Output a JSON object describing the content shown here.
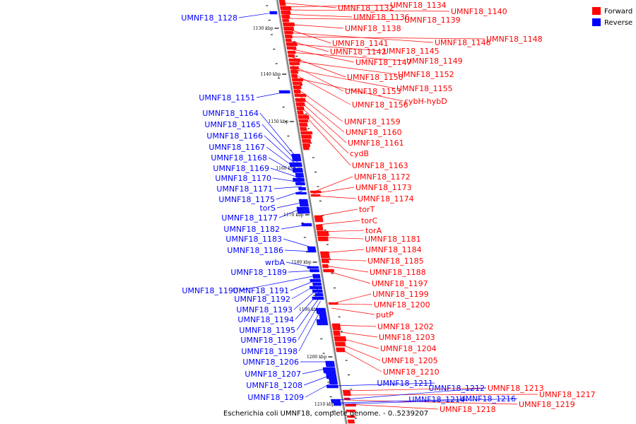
{
  "caption": "Escherichia coli UMNF18, complete genome. - 0..5239207",
  "colors": {
    "forward": "#ff0000",
    "reverse": "#0000ff",
    "axis": "#7f7f7f"
  },
  "legend": [
    {
      "label": "Forward",
      "strand": "forward"
    },
    {
      "label": "Reverse",
      "strand": "reverse"
    }
  ],
  "ticks": [
    "1130 kbp",
    "1140 kbp",
    "1150 kbp",
    "1160 kbp",
    "1170 kbp",
    "1180 kbp",
    "1190 kbp",
    "1200 kbp",
    "1210 kbp"
  ],
  "forward_labels": [
    "UMNF18_1132",
    "UMNF18_1134",
    "UMNF18_1140",
    "UMNF18_1136",
    "UMNF18_1139",
    "UMNF18_1138",
    "UMNF18_1141",
    "UMNF18_1146",
    "UMNF18_1148",
    "UMNF18_1142",
    "UMNF18_1145",
    "UMNF18_1147",
    "UMNF18_1149",
    "UMNF18_1150",
    "UMNF18_1152",
    "UMNF18_1153",
    "UMNF18_1155",
    "UMNF18_1156",
    "cybH-hybD",
    "UMNF18_1159",
    "UMNF18_1160",
    "UMNF18_1161",
    "cydB",
    "UMNF18_1163",
    "UMNF18_1172",
    "UMNF18_1173",
    "UMNF18_1174",
    "torT",
    "torC",
    "torA",
    "UMNF18_1181",
    "UMNF18_1184",
    "UMNF18_1185",
    "UMNF18_1188",
    "UMNF18_1197",
    "UMNF18_1199",
    "UMNF18_1200",
    "putP",
    "UMNF18_1202",
    "UMNF18_1203",
    "UMNF18_1204",
    "UMNF18_1205",
    "UMNF18_1210",
    "UMNF18_1213",
    "UMNF18_1217",
    "UMNF18_1219",
    "UMNF18_1218"
  ],
  "reverse_labels": [
    "UMNF18_1128",
    "UMNF18_1151",
    "UMNF18_1164",
    "UMNF18_1165",
    "UMNF18_1166",
    "UMNF18_1167",
    "UMNF18_1168",
    "UMNF18_1169",
    "UMNF18_1170",
    "UMNF18_1171",
    "UMNF18_1175",
    "torS",
    "UMNF18_1177",
    "UMNF18_1182",
    "UMNF18_1183",
    "UMNF18_1186",
    "wrbA",
    "UMNF18_1189",
    "UMNF18_1190",
    "UMNF18_1191",
    "UMNF18_1192",
    "UMNF18_1193",
    "UMNF18_1194",
    "UMNF18_1195",
    "UMNF18_1196",
    "UMNF18_1198",
    "UMNF18_1206",
    "UMNF18_1207",
    "UMNF18_1208",
    "UMNF18_1209",
    "UMNF18_1211",
    "UMNF18_1212",
    "UMNF18_1214",
    "UMNF18_1216"
  ]
}
